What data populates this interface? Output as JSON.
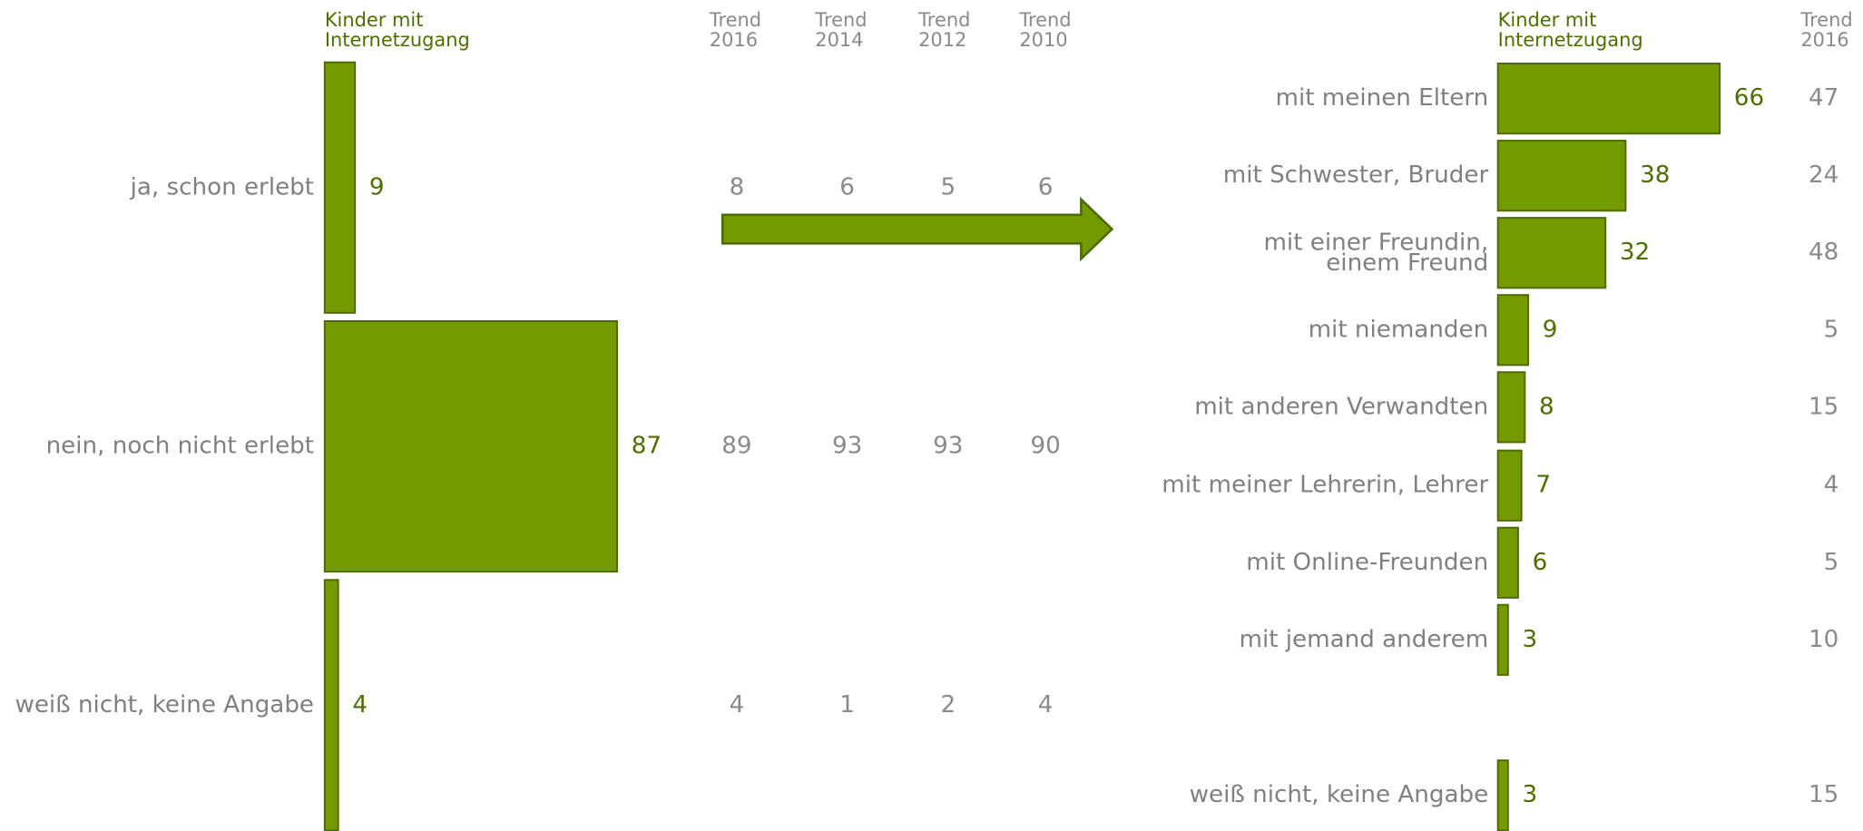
{
  "chart_data": [
    {
      "type": "bar",
      "categories": [
        "ja, schon erlebt",
        "nein, noch nicht erlebt",
        "weiß nicht, keine Angabe"
      ],
      "series": [
        {
          "name": "Kinder mit\nInternetzugang",
          "color": "#739b00",
          "values": [
            9,
            87,
            4
          ]
        },
        {
          "name": "Trend\n2016",
          "values": [
            8,
            89,
            4
          ]
        },
        {
          "name": "Trend\n2014",
          "values": [
            6,
            93,
            1
          ]
        },
        {
          "name": "Trend\n2012",
          "values": [
            5,
            93,
            2
          ]
        },
        {
          "name": "Trend\n2010",
          "values": [
            6,
            90,
            4
          ]
        }
      ]
    },
    {
      "type": "bar",
      "categories": [
        "mit meinen Eltern",
        "mit Schwester, Bruder",
        "mit einer Freundin,\neinem Freund",
        "mit niemanden",
        "mit anderen Verwandten",
        "mit meiner Lehrerin, Lehrer",
        "mit Online-Freunden",
        "mit jemand anderem",
        "weiß nicht, keine Angabe"
      ],
      "series": [
        {
          "name": "Kinder mit\nInternetzugang",
          "color": "#739b00",
          "values": [
            66,
            38,
            32,
            9,
            8,
            7,
            6,
            3,
            3
          ]
        },
        {
          "name": "Trend\n2016",
          "values": [
            47,
            24,
            48,
            5,
            15,
            4,
            5,
            10,
            15
          ]
        }
      ]
    }
  ]
}
